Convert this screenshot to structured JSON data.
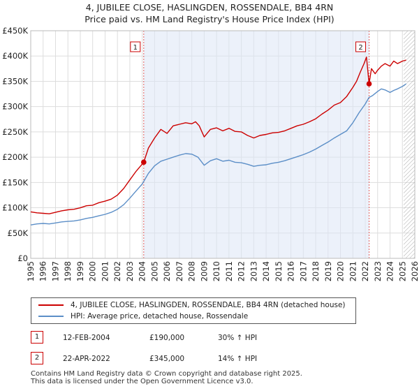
{
  "title_line1": "4, JUBILEE CLOSE, HASLINGDEN, ROSSENDALE, BB4 4RN",
  "title_line2": "Price paid vs. HM Land Registry's House Price Index (HPI)",
  "colors": {
    "property": "#cc0000",
    "hpi": "#5b8ec7",
    "shade": "#dce6f5",
    "grid": "#dddddd"
  },
  "chart_data": {
    "type": "line",
    "xlim": [
      1995,
      2026
    ],
    "ylim": [
      0,
      450000
    ],
    "ytick_values": [
      0,
      50000,
      100000,
      150000,
      200000,
      250000,
      300000,
      350000,
      400000,
      450000
    ],
    "ytick_labels": [
      "£0",
      "£50K",
      "£100K",
      "£150K",
      "£200K",
      "£250K",
      "£300K",
      "£350K",
      "£400K",
      "£450K"
    ],
    "xtick_values": [
      1995,
      1996,
      1997,
      1998,
      1999,
      2000,
      2001,
      2002,
      2003,
      2004,
      2005,
      2006,
      2007,
      2008,
      2009,
      2010,
      2011,
      2012,
      2013,
      2014,
      2015,
      2016,
      2017,
      2018,
      2019,
      2020,
      2021,
      2022,
      2023,
      2024,
      2025,
      2026
    ],
    "xtick_labels": [
      "1995",
      "1996",
      "1997",
      "1998",
      "1999",
      "2000",
      "2001",
      "2002",
      "2003",
      "2004",
      "2005",
      "2006",
      "2007",
      "2008",
      "2009",
      "2010",
      "2011",
      "2012",
      "2013",
      "2014",
      "2015",
      "2016",
      "2017",
      "2018",
      "2019",
      "2020",
      "2021",
      "2022",
      "2023",
      "2024",
      "2025",
      "2026"
    ],
    "shaded_ranges": [
      [
        2004.12,
        2022.31
      ]
    ],
    "hatched_range": [
      2025.1,
      2026
    ],
    "series": [
      {
        "name": "4, JUBILEE CLOSE, HASLINGDEN, ROSSENDALE, BB4 4RN (detached house)",
        "color": "#cc0000",
        "x": [
          1995,
          1995.5,
          1996,
          1996.5,
          1997,
          1997.5,
          1998,
          1998.5,
          1999,
          1999.5,
          2000,
          2000.5,
          2001,
          2001.5,
          2002,
          2002.5,
          2003,
          2003.5,
          2004.12,
          2004.5,
          2005,
          2005.5,
          2006,
          2006.5,
          2007,
          2007.5,
          2008,
          2008.3,
          2008.6,
          2009,
          2009.5,
          2010,
          2010.5,
          2011,
          2011.5,
          2012,
          2012.5,
          2013,
          2013.5,
          2014,
          2014.5,
          2015,
          2015.5,
          2016,
          2016.5,
          2017,
          2017.5,
          2018,
          2018.5,
          2019,
          2019.5,
          2020,
          2020.5,
          2021,
          2021.3,
          2021.6,
          2021.9,
          2022.1,
          2022.31,
          2022.5,
          2022.8,
          2023,
          2023.3,
          2023.6,
          2024,
          2024.3,
          2024.6,
          2025,
          2025.3
        ],
        "y": [
          92000,
          90000,
          89000,
          88000,
          91000,
          94000,
          96000,
          97000,
          100000,
          104000,
          105000,
          110000,
          113000,
          117000,
          125000,
          138000,
          155000,
          172000,
          190000,
          218000,
          238000,
          255000,
          247000,
          262000,
          265000,
          268000,
          266000,
          270000,
          262000,
          240000,
          255000,
          258000,
          252000,
          257000,
          251000,
          250000,
          243000,
          238000,
          243000,
          245000,
          248000,
          249000,
          252000,
          257000,
          262000,
          265000,
          270000,
          276000,
          285000,
          293000,
          303000,
          308000,
          320000,
          338000,
          350000,
          368000,
          385000,
          398000,
          345000,
          375000,
          365000,
          372000,
          380000,
          385000,
          380000,
          390000,
          385000,
          390000,
          392000
        ]
      },
      {
        "name": "HPI: Average price, detached house, Rossendale",
        "color": "#5b8ec7",
        "x": [
          1995,
          1995.5,
          1996,
          1996.5,
          1997,
          1997.5,
          1998,
          1998.5,
          1999,
          1999.5,
          2000,
          2000.5,
          2001,
          2001.5,
          2002,
          2002.5,
          2003,
          2003.5,
          2004,
          2004.5,
          2005,
          2005.5,
          2006,
          2006.5,
          2007,
          2007.5,
          2008,
          2008.5,
          2009,
          2009.5,
          2010,
          2010.5,
          2011,
          2011.5,
          2012,
          2012.5,
          2013,
          2013.5,
          2014,
          2014.5,
          2015,
          2015.5,
          2016,
          2016.5,
          2017,
          2017.5,
          2018,
          2018.5,
          2019,
          2019.5,
          2020,
          2020.5,
          2021,
          2021.5,
          2022,
          2022.3,
          2022.6,
          2023,
          2023.3,
          2023.6,
          2024,
          2024.3,
          2024.6,
          2025,
          2025.3
        ],
        "y": [
          66000,
          68000,
          69000,
          68000,
          70000,
          72000,
          73000,
          74000,
          76000,
          79000,
          81000,
          84000,
          87000,
          91000,
          97000,
          106000,
          119000,
          133000,
          147000,
          168000,
          183000,
          192000,
          196000,
          200000,
          204000,
          207000,
          206000,
          200000,
          184000,
          193000,
          197000,
          192000,
          194000,
          190000,
          189000,
          186000,
          182000,
          184000,
          185000,
          188000,
          190000,
          193000,
          197000,
          201000,
          205000,
          210000,
          216000,
          223000,
          230000,
          238000,
          245000,
          252000,
          268000,
          288000,
          305000,
          318000,
          322000,
          330000,
          335000,
          333000,
          328000,
          332000,
          335000,
          340000,
          345000
        ]
      }
    ],
    "sale_markers": [
      {
        "label": "1",
        "x": 2004.12,
        "y": 190000
      },
      {
        "label": "2",
        "x": 2022.31,
        "y": 345000
      }
    ]
  },
  "legend": {
    "property_label": "4, JUBILEE CLOSE, HASLINGDEN, ROSSENDALE, BB4 4RN (detached house)",
    "hpi_label": "HPI: Average price, detached house, Rossendale"
  },
  "sales": [
    {
      "num": "1",
      "date": "12-FEB-2004",
      "price": "£190,000",
      "hpi": "30% ↑ HPI"
    },
    {
      "num": "2",
      "date": "22-APR-2022",
      "price": "£345,000",
      "hpi": "14% ↑ HPI"
    }
  ],
  "footer_line1": "Contains HM Land Registry data © Crown copyright and database right 2025.",
  "footer_line2": "This data is licensed under the Open Government Licence v3.0."
}
